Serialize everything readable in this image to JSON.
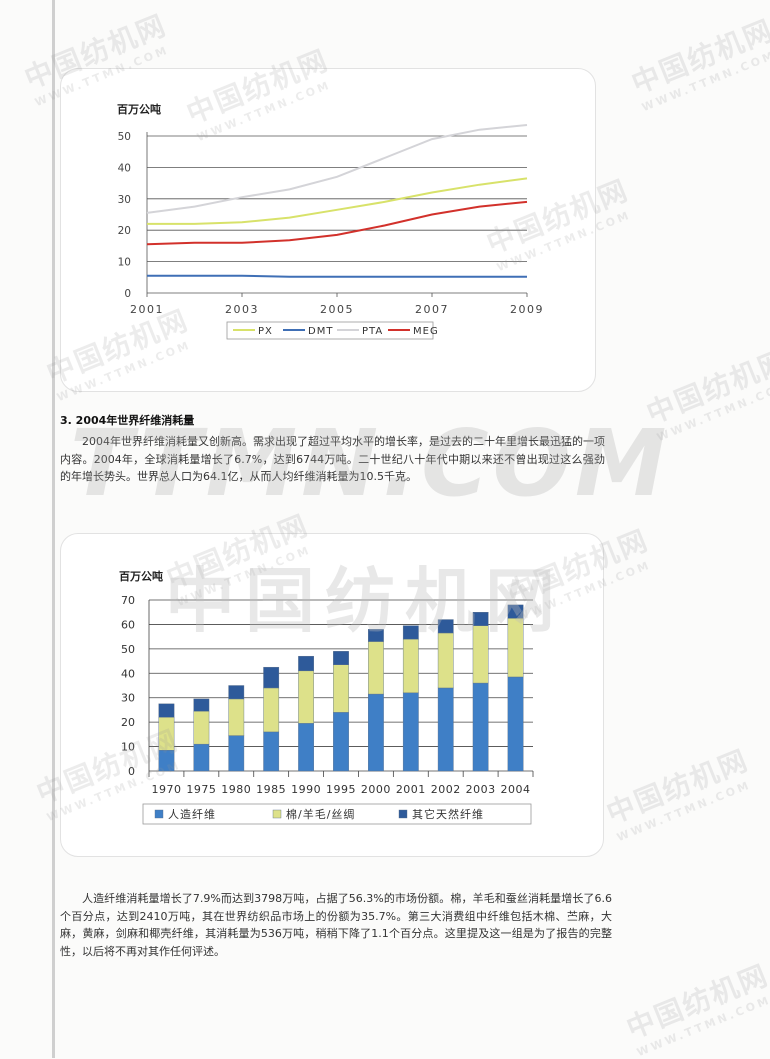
{
  "watermark": {
    "text": "中国纺机网",
    "sub": "WWW.TTMN.COM",
    "large": "TTMN.COM"
  },
  "chart_data": [
    {
      "type": "line",
      "ylabel": "百万公吨",
      "x": [
        2001,
        2002,
        2003,
        2004,
        2005,
        2006,
        2007,
        2008,
        2009
      ],
      "xticks": [
        "2001",
        "2003",
        "2005",
        "2007",
        "2009"
      ],
      "yticks": [
        "0",
        "10",
        "20",
        "30",
        "40",
        "50"
      ],
      "ylim": [
        0,
        50
      ],
      "grid": true,
      "legend_position": "bottom",
      "series": [
        {
          "name": "PX",
          "color": "#d8e26a",
          "values": [
            22,
            22,
            22.5,
            24,
            26.5,
            29,
            32,
            34.5,
            36.5
          ]
        },
        {
          "name": "DMT",
          "color": "#3f6fb5",
          "values": [
            5.5,
            5.5,
            5.5,
            5.2,
            5.2,
            5.2,
            5.2,
            5.2,
            5.2
          ]
        },
        {
          "name": "PTA",
          "color": "#d4d4d8",
          "values": [
            25.5,
            27.5,
            30.5,
            33,
            37,
            43,
            49,
            52,
            53.5
          ]
        },
        {
          "name": "MEG",
          "color": "#d2312b",
          "values": [
            15.5,
            16,
            16,
            16.8,
            18.5,
            21.5,
            25,
            27.5,
            29
          ]
        }
      ]
    },
    {
      "type": "bar",
      "stacked": true,
      "ylabel": "百万公吨",
      "categories": [
        "1970",
        "1975",
        "1980",
        "1985",
        "1990",
        "1995",
        "2000",
        "2001",
        "2002",
        "2003",
        "2004"
      ],
      "yticks": [
        "0",
        "10",
        "20",
        "30",
        "40",
        "50",
        "60",
        "70"
      ],
      "ylim": [
        0,
        70
      ],
      "grid": true,
      "legend_position": "bottom",
      "series": [
        {
          "name": "人造纤维",
          "color": "#3f7fc6",
          "values": [
            8.5,
            11,
            14.5,
            16,
            19.5,
            24,
            31.5,
            32,
            34,
            36,
            38.5
          ]
        },
        {
          "name": "棉/羊毛/丝绸",
          "color": "#dde18a",
          "values": [
            13.5,
            13.5,
            15,
            18,
            21.5,
            19.5,
            21.5,
            22,
            22.5,
            23.5,
            24
          ]
        },
        {
          "name": "其它天然纤维",
          "color": "#2e5a9a",
          "values": [
            5.5,
            5,
            5.5,
            8.5,
            6,
            5.5,
            5,
            5.5,
            5.5,
            5.5,
            5.5
          ]
        }
      ]
    }
  ],
  "section": {
    "heading": "3. 2004年世界纤维消耗量"
  },
  "paragraphs": {
    "p1": "2004年世界纤维消耗量又创新高。需求出现了超过平均水平的增长率，是过去的二十年里增长最迅猛的一项内容。2004年，全球消耗量增长了6.7%，达到6744万吨。二十世纪八十年代中期以来还不曾出现过这么强劲的年增长势头。世界总人口为64.1亿，从而人均纤维消耗量为10.5千克。",
    "p2": "人造纤维消耗量增长了7.9%而达到3798万吨，占据了56.3%的市场份额。棉，羊毛和蚕丝消耗量增长了6.6个百分点，达到2410万吨，其在世界纺织品市场上的份额为35.7%。第三大消费组中纤维包括木棉、苎麻，大麻，黄麻，剑麻和椰壳纤维，其消耗量为536万吨，稍稍下降了1.1个百分点。这里提及这一组是为了报告的完整性，以后将不再对其作任何评述。"
  }
}
